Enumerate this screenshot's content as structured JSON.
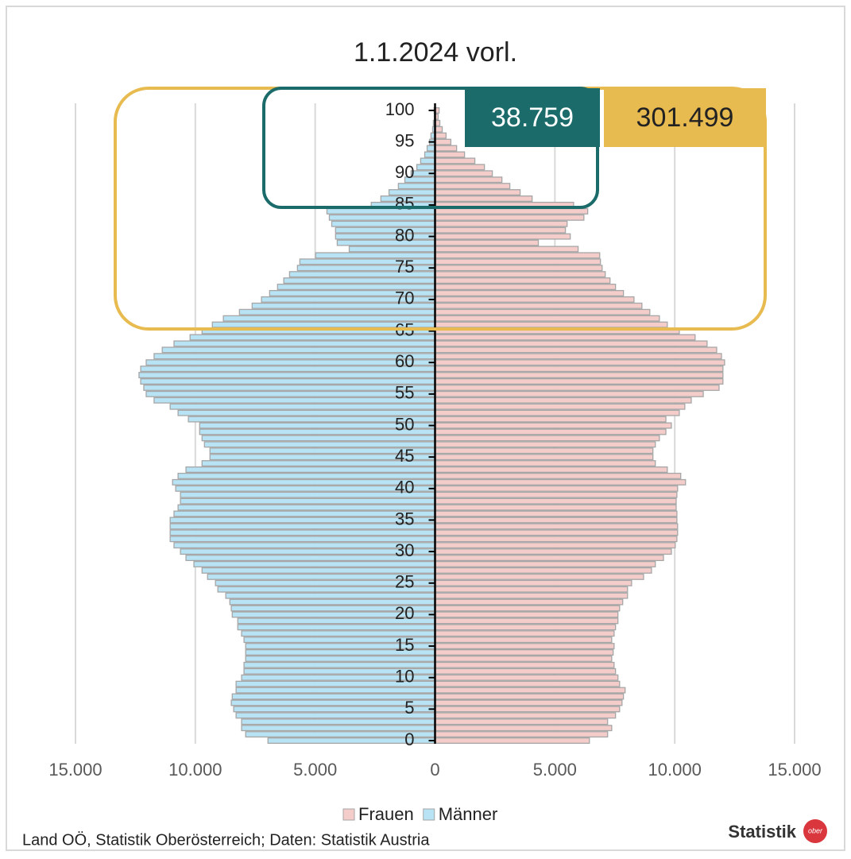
{
  "chart_data": {
    "type": "pyramid",
    "title": "1.1.2024 vorl.",
    "categories": [
      "0",
      null,
      null,
      null,
      null,
      "5",
      null,
      null,
      null,
      null,
      "10",
      null,
      null,
      null,
      null,
      "15",
      null,
      null,
      null,
      null,
      "20",
      null,
      null,
      null,
      null,
      "25",
      null,
      null,
      null,
      null,
      "30",
      null,
      null,
      null,
      null,
      "35",
      null,
      null,
      null,
      null,
      "40",
      null,
      null,
      null,
      null,
      "45",
      null,
      null,
      null,
      null,
      "50",
      null,
      null,
      null,
      null,
      "55",
      null,
      null,
      null,
      null,
      "60",
      null,
      null,
      null,
      null,
      "65",
      null,
      null,
      null,
      null,
      "70",
      null,
      null,
      null,
      null,
      "75",
      null,
      null,
      null,
      null,
      "80",
      null,
      null,
      null,
      null,
      "85",
      null,
      null,
      null,
      null,
      "90",
      null,
      null,
      null,
      null,
      "95",
      null,
      null,
      null,
      null,
      "100"
    ],
    "series": [
      {
        "name": "Frauen",
        "color": "#f4cdcb",
        "values": [
          6440,
          7200,
          7370,
          7200,
          7530,
          7700,
          7800,
          7860,
          7930,
          7700,
          7630,
          7530,
          7470,
          7370,
          7430,
          7470,
          7370,
          7470,
          7530,
          7630,
          7630,
          7700,
          7830,
          8030,
          8030,
          8200,
          8700,
          9030,
          9190,
          9530,
          9860,
          10020,
          10090,
          10120,
          10120,
          10090,
          10090,
          10060,
          10060,
          10090,
          10120,
          10450,
          10250,
          9690,
          9190,
          9090,
          9090,
          9190,
          9360,
          9630,
          9860,
          9630,
          10190,
          10420,
          10690,
          11190,
          11850,
          12010,
          12010,
          12010,
          12080,
          11950,
          11750,
          11350,
          10850,
          10190,
          9690,
          9360,
          8960,
          8630,
          8300,
          7860,
          7530,
          7300,
          7100,
          6970,
          6900,
          6870,
          5970,
          4310,
          5640,
          5440,
          5510,
          6210,
          6370,
          5780,
          4050,
          3550,
          3120,
          2790,
          2390,
          2060,
          1660,
          1230,
          900,
          660,
          460,
          300,
          200,
          130,
          170
        ]
      },
      {
        "name": "Männer",
        "color": "#b7e3f4",
        "values": [
          -6970,
          -7900,
          -8070,
          -8070,
          -8300,
          -8400,
          -8500,
          -8460,
          -8300,
          -8300,
          -8070,
          -7970,
          -7970,
          -7900,
          -7900,
          -7900,
          -7970,
          -8070,
          -8230,
          -8230,
          -8460,
          -8500,
          -8560,
          -8730,
          -9060,
          -9160,
          -9490,
          -9720,
          -10060,
          -10390,
          -10620,
          -10890,
          -11050,
          -11050,
          -11050,
          -11050,
          -10890,
          -10720,
          -10620,
          -10620,
          -10820,
          -10950,
          -10720,
          -10390,
          -9720,
          -9390,
          -9390,
          -9620,
          -9720,
          -9820,
          -9820,
          -10290,
          -10720,
          -11050,
          -11720,
          -12050,
          -12150,
          -12280,
          -12350,
          -12280,
          -12050,
          -11720,
          -11380,
          -10890,
          -10220,
          -9720,
          -9290,
          -8830,
          -8160,
          -7630,
          -7240,
          -6900,
          -6570,
          -6310,
          -6070,
          -5740,
          -5640,
          -4980,
          -3580,
          -4080,
          -4150,
          -4150,
          -4310,
          -4410,
          -4510,
          -2660,
          -2260,
          -1920,
          -1530,
          -1260,
          -1000,
          -760,
          -600,
          -430,
          -330,
          -230,
          -170,
          -100,
          -70,
          -30,
          -40
        ]
      }
    ],
    "xlim": [
      -15000,
      15000
    ],
    "xticks": [
      {
        "value": -15000,
        "label": "15.000"
      },
      {
        "value": -10000,
        "label": "10.000"
      },
      {
        "value": -5000,
        "label": "5.000"
      },
      0,
      {
        "value": 5000,
        "label": "5.000"
      },
      {
        "value": 10000,
        "label": "10.000"
      },
      {
        "value": 15000,
        "label": "15.000"
      }
    ],
    "grid": true,
    "annotations": [
      "38.759",
      "301.499"
    ],
    "source": "Land OÖ, Statistik Oberösterreich; Daten: Statistik Austria",
    "logo": {
      "text": "Statistik",
      "badge": "ober"
    }
  }
}
